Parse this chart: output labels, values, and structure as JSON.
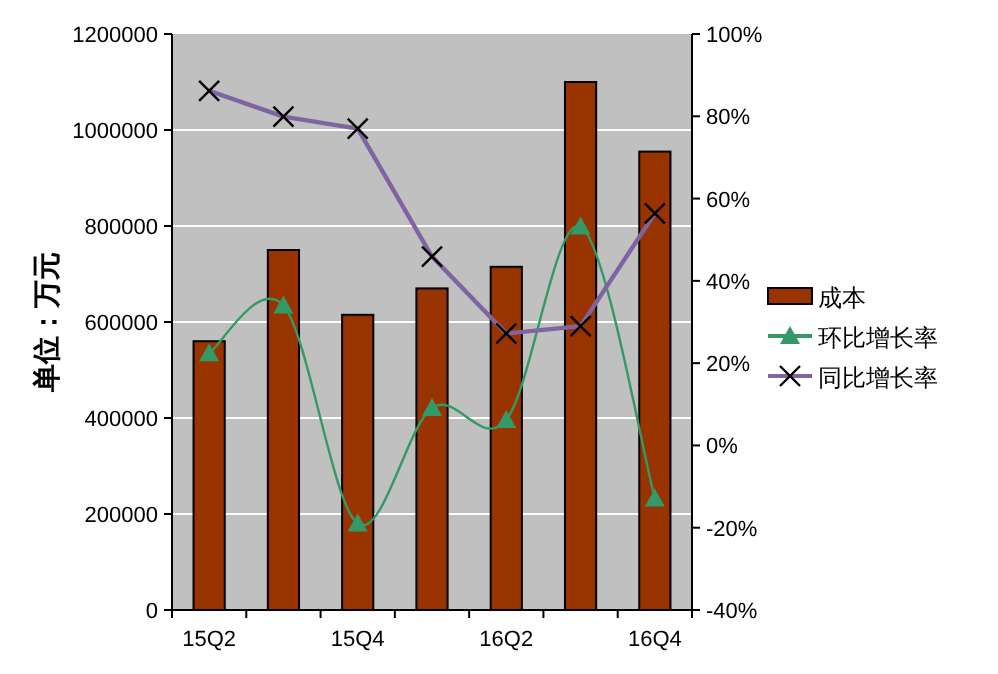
{
  "chart_data": {
    "type": "bar",
    "categories": [
      "15Q2",
      null,
      "15Q4",
      null,
      "16Q2",
      null,
      "16Q4"
    ],
    "ylabel": "单位：万元",
    "ylim": [
      0,
      1200000
    ],
    "yticks": [
      0,
      200000,
      400000,
      600000,
      800000,
      1000000,
      1200000
    ],
    "y2lim": [
      -40,
      100
    ],
    "y2ticks": [
      {
        "value": -40,
        "label": "-40%"
      },
      {
        "value": -20,
        "label": "-20%"
      },
      {
        "value": 0,
        "label": "0%"
      },
      {
        "value": 20,
        "label": "20%"
      },
      {
        "value": 40,
        "label": "40%"
      },
      {
        "value": 60,
        "label": "60%"
      },
      {
        "value": 80,
        "label": "80%"
      },
      {
        "value": 100,
        "label": "100%"
      }
    ],
    "grid": "y",
    "legend": "right",
    "series": [
      {
        "name": "成本",
        "color": "#993300",
        "values": [
          560000,
          750000,
          615000,
          670000,
          715000,
          1100000,
          955000
        ]
      },
      {
        "name": "环比增长率",
        "type": "line",
        "axis": "y2",
        "marker": "triangle",
        "color": "#339966",
        "values": [
          22.4,
          34,
          -19,
          9.1,
          6.2,
          53.2,
          -12.9
        ]
      },
      {
        "name": "同比增长率",
        "type": "line",
        "axis": "y2",
        "marker": "cross",
        "color": "#8064a2",
        "values": [
          86.2,
          79.9,
          77,
          45.9,
          27.2,
          29,
          56.4
        ]
      }
    ]
  }
}
